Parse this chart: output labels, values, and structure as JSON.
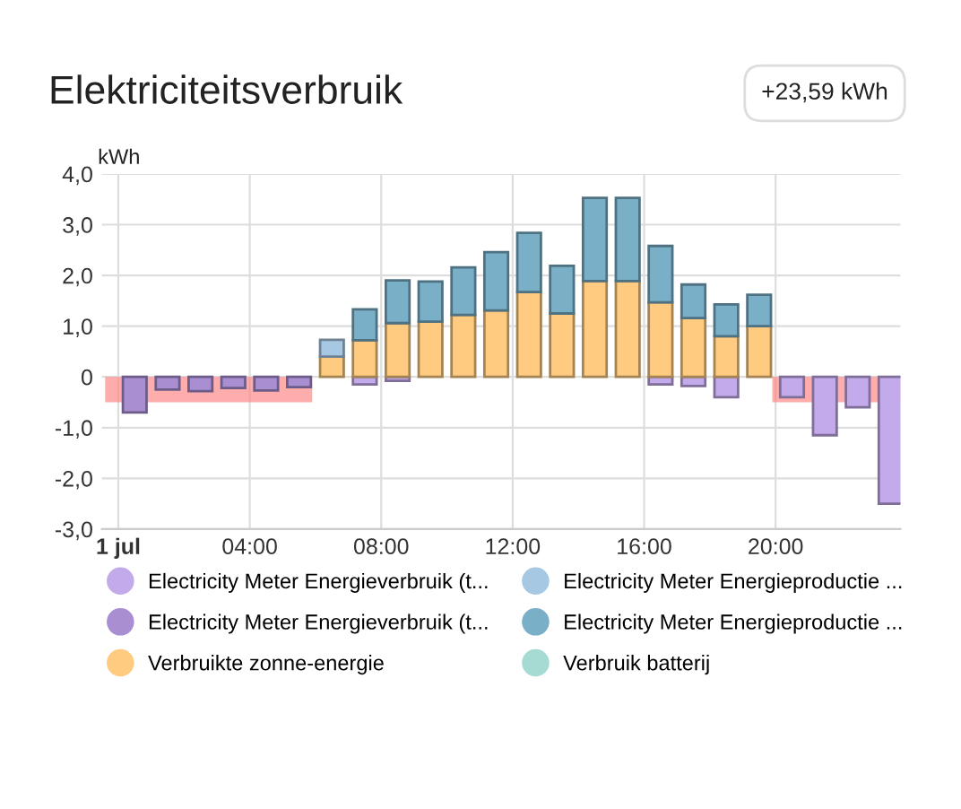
{
  "chart_data": {
    "type": "bar",
    "title": "Elektriciteitsverbruik",
    "ylabel": "kWh",
    "annotations": [
      "+23,59 kWh"
    ],
    "x": [
      0.5,
      1.5,
      2.5,
      3.5,
      4.5,
      5.5,
      6.5,
      7.5,
      8.5,
      9.5,
      10.5,
      11.5,
      12.5,
      13.5,
      14.5,
      15.5,
      16.5,
      17.5,
      18.5,
      19.5,
      20.5,
      21.5,
      22.5,
      23.5
    ],
    "stacked": true,
    "series": [
      {
        "name": "Electricity Meter Energieverbruik (t...",
        "color": "#c3aaea",
        "values": [
          null,
          null,
          null,
          null,
          null,
          null,
          null,
          -0.15,
          -0.08,
          null,
          null,
          null,
          null,
          null,
          null,
          null,
          -0.15,
          -0.18,
          -0.4,
          null,
          -0.4,
          -1.15,
          -0.6,
          -2.5
        ]
      },
      {
        "name": "Electricity Meter Energieverbruik (t...",
        "color": "#a98ed2",
        "values": [
          -0.7,
          -0.25,
          -0.28,
          -0.22,
          -0.27,
          -0.2,
          null,
          null,
          null,
          null,
          null,
          null,
          null,
          null,
          null,
          null,
          null,
          null,
          null,
          null,
          null,
          null,
          null,
          null
        ]
      },
      {
        "name": "Verbruikte zonne-energie",
        "color": "#fecb80",
        "values": [
          null,
          null,
          null,
          null,
          null,
          null,
          0.4,
          0.72,
          1.06,
          1.09,
          1.22,
          1.31,
          1.67,
          1.25,
          1.89,
          1.89,
          1.47,
          1.16,
          0.8,
          1.0,
          null,
          null,
          null,
          null
        ]
      },
      {
        "name": "Electricity Meter Energieproductie ...",
        "color": "#a7c8e3",
        "values": [
          null,
          null,
          null,
          null,
          null,
          null,
          0.33,
          null,
          null,
          null,
          null,
          null,
          null,
          null,
          null,
          null,
          null,
          null,
          null,
          null,
          null,
          null,
          null,
          null
        ]
      },
      {
        "name": "Electricity Meter Energieproductie ...",
        "color": "#7aafc8",
        "values": [
          null,
          null,
          null,
          null,
          null,
          null,
          null,
          0.61,
          0.84,
          0.79,
          0.94,
          1.15,
          1.17,
          0.94,
          1.64,
          1.64,
          1.11,
          0.66,
          0.63,
          0.62,
          null,
          null,
          null,
          null
        ]
      },
      {
        "name": "Verbruik batterij",
        "color": "#a5dbd3",
        "values": [
          null,
          null,
          null,
          null,
          null,
          null,
          null,
          null,
          null,
          null,
          null,
          null,
          null,
          null,
          null,
          null,
          null,
          null,
          null,
          null,
          null,
          null,
          null,
          null
        ]
      },
      {
        "type": "area",
        "color": "#ff8080",
        "x": [
          -0.4,
          5.9,
          12,
          19.9,
          23.8
        ],
        "values": [
          -0.5,
          -0.5,
          null,
          -0.5,
          -0.5
        ]
      }
    ],
    "xlim": [
      -0.5,
      23.8
    ],
    "xticks": [
      {
        "value": 0,
        "label": "1 jul"
      },
      {
        "value": 4,
        "label": "04:00"
      },
      {
        "value": 8,
        "label": "08:00"
      },
      {
        "value": 12,
        "label": "12:00"
      },
      {
        "value": 16,
        "label": "16:00"
      },
      {
        "value": 20,
        "label": "20:00"
      }
    ],
    "ylim": [
      -3,
      4
    ],
    "yticks": [
      {
        "value": -3,
        "label": "-3,0"
      },
      {
        "value": -2,
        "label": "-2,0"
      },
      {
        "value": -1,
        "label": "-1,0"
      },
      0,
      {
        "value": 1,
        "label": "1,0"
      },
      {
        "value": 2,
        "label": "2,0"
      },
      {
        "value": 3,
        "label": "3,0"
      },
      {
        "value": 4,
        "label": "4,0"
      }
    ],
    "grid": true,
    "legend": "bottom"
  }
}
